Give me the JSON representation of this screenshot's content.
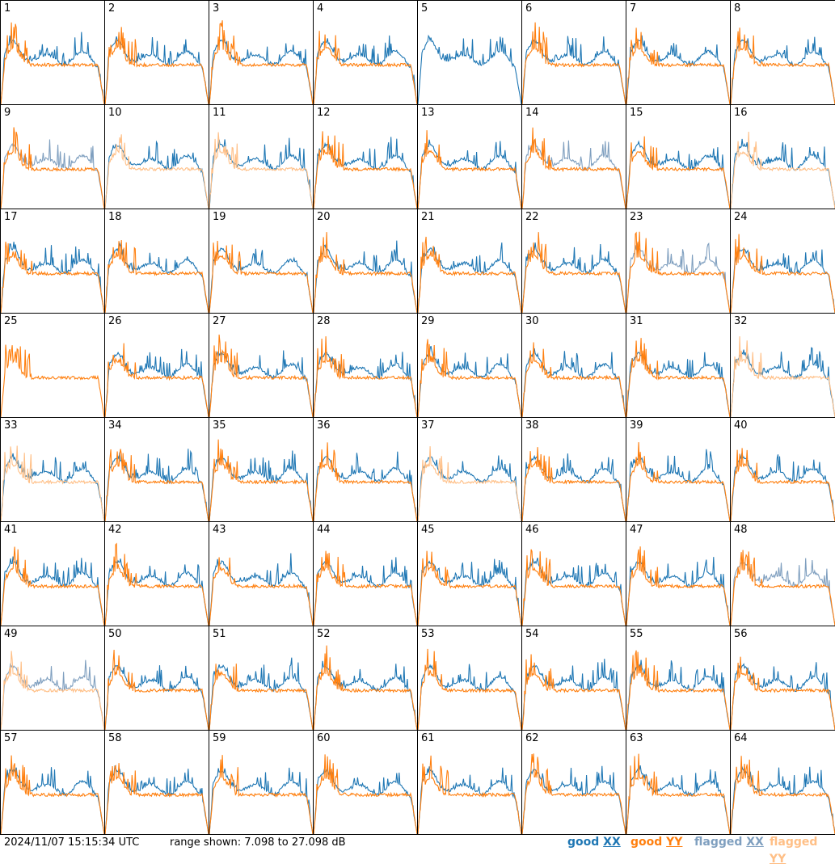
{
  "footer": {
    "timestamp": "2024/11/07 15:15:34 UTC",
    "range_text": "range shown: 7.098 to 27.098 dB"
  },
  "legend": [
    {
      "label": "good XX",
      "color": "#1f77b4"
    },
    {
      "label": "good YY",
      "color": "#ff7f0e"
    },
    {
      "label": "flagged XX",
      "color": "#7f9fbf"
    },
    {
      "label": "flagged YY",
      "color": "#ffbf86"
    }
  ],
  "colors": {
    "good_xx": "#1f77b4",
    "good_yy": "#ff7f0e",
    "flagged_xx": "#7f9fbf",
    "flagged_yy": "#ffbf86"
  },
  "chart_data": {
    "type": "line",
    "layout": "8x8 small multiples",
    "y_range_db": [
      7.098,
      27.098
    ],
    "grid": false,
    "panels": [
      {
        "label": "1",
        "xx": "good",
        "yy": "good"
      },
      {
        "label": "2",
        "xx": "good",
        "yy": "good"
      },
      {
        "label": "3",
        "xx": "good",
        "yy": "good"
      },
      {
        "label": "4",
        "xx": "good",
        "yy": "good"
      },
      {
        "label": "5",
        "xx": "good",
        "yy": "none"
      },
      {
        "label": "6",
        "xx": "good",
        "yy": "good"
      },
      {
        "label": "7",
        "xx": "good",
        "yy": "good"
      },
      {
        "label": "8",
        "xx": "good",
        "yy": "good"
      },
      {
        "label": "9",
        "xx": "flagged",
        "yy": "good"
      },
      {
        "label": "10",
        "xx": "good",
        "yy": "flagged"
      },
      {
        "label": "11",
        "xx": "good",
        "yy": "flagged"
      },
      {
        "label": "12",
        "xx": "good",
        "yy": "good"
      },
      {
        "label": "13",
        "xx": "good",
        "yy": "good"
      },
      {
        "label": "14",
        "xx": "flagged",
        "yy": "good"
      },
      {
        "label": "15",
        "xx": "good",
        "yy": "good"
      },
      {
        "label": "16",
        "xx": "good",
        "yy": "flagged"
      },
      {
        "label": "17",
        "xx": "good",
        "yy": "good"
      },
      {
        "label": "18",
        "xx": "good",
        "yy": "good"
      },
      {
        "label": "19",
        "xx": "good",
        "yy": "good"
      },
      {
        "label": "20",
        "xx": "good",
        "yy": "good"
      },
      {
        "label": "21",
        "xx": "good",
        "yy": "good"
      },
      {
        "label": "22",
        "xx": "good",
        "yy": "good"
      },
      {
        "label": "23",
        "xx": "flagged",
        "yy": "good"
      },
      {
        "label": "24",
        "xx": "good",
        "yy": "good"
      },
      {
        "label": "25",
        "xx": "none",
        "yy": "good"
      },
      {
        "label": "26",
        "xx": "good",
        "yy": "good"
      },
      {
        "label": "27",
        "xx": "good",
        "yy": "good"
      },
      {
        "label": "28",
        "xx": "good",
        "yy": "good"
      },
      {
        "label": "29",
        "xx": "good",
        "yy": "good"
      },
      {
        "label": "30",
        "xx": "good",
        "yy": "good"
      },
      {
        "label": "31",
        "xx": "good",
        "yy": "good"
      },
      {
        "label": "32",
        "xx": "good",
        "yy": "flagged"
      },
      {
        "label": "33",
        "xx": "good",
        "yy": "flagged"
      },
      {
        "label": "34",
        "xx": "good",
        "yy": "good"
      },
      {
        "label": "35",
        "xx": "good",
        "yy": "good"
      },
      {
        "label": "36",
        "xx": "good",
        "yy": "good"
      },
      {
        "label": "37",
        "xx": "good",
        "yy": "flagged"
      },
      {
        "label": "38",
        "xx": "good",
        "yy": "good"
      },
      {
        "label": "39",
        "xx": "good",
        "yy": "good"
      },
      {
        "label": "40",
        "xx": "good",
        "yy": "good"
      },
      {
        "label": "41",
        "xx": "good",
        "yy": "good"
      },
      {
        "label": "42",
        "xx": "good",
        "yy": "good"
      },
      {
        "label": "43",
        "xx": "good",
        "yy": "good"
      },
      {
        "label": "44",
        "xx": "good",
        "yy": "good"
      },
      {
        "label": "45",
        "xx": "good",
        "yy": "good"
      },
      {
        "label": "46",
        "xx": "good",
        "yy": "good"
      },
      {
        "label": "47",
        "xx": "good",
        "yy": "good"
      },
      {
        "label": "48",
        "xx": "flagged",
        "yy": "good"
      },
      {
        "label": "49",
        "xx": "flagged",
        "yy": "flagged"
      },
      {
        "label": "50",
        "xx": "good",
        "yy": "good"
      },
      {
        "label": "51",
        "xx": "good",
        "yy": "good"
      },
      {
        "label": "52",
        "xx": "good",
        "yy": "good"
      },
      {
        "label": "53",
        "xx": "good",
        "yy": "good"
      },
      {
        "label": "54",
        "xx": "good",
        "yy": "good"
      },
      {
        "label": "55",
        "xx": "good",
        "yy": "good"
      },
      {
        "label": "56",
        "xx": "good",
        "yy": "good"
      },
      {
        "label": "57",
        "xx": "good",
        "yy": "good"
      },
      {
        "label": "58",
        "xx": "good",
        "yy": "good"
      },
      {
        "label": "59",
        "xx": "good",
        "yy": "good"
      },
      {
        "label": "60",
        "xx": "good",
        "yy": "good"
      },
      {
        "label": "61",
        "xx": "good",
        "yy": "good"
      },
      {
        "label": "62",
        "xx": "good",
        "yy": "good"
      },
      {
        "label": "63",
        "xx": "good",
        "yy": "good"
      },
      {
        "label": "64",
        "xx": "good",
        "yy": "good"
      }
    ]
  }
}
